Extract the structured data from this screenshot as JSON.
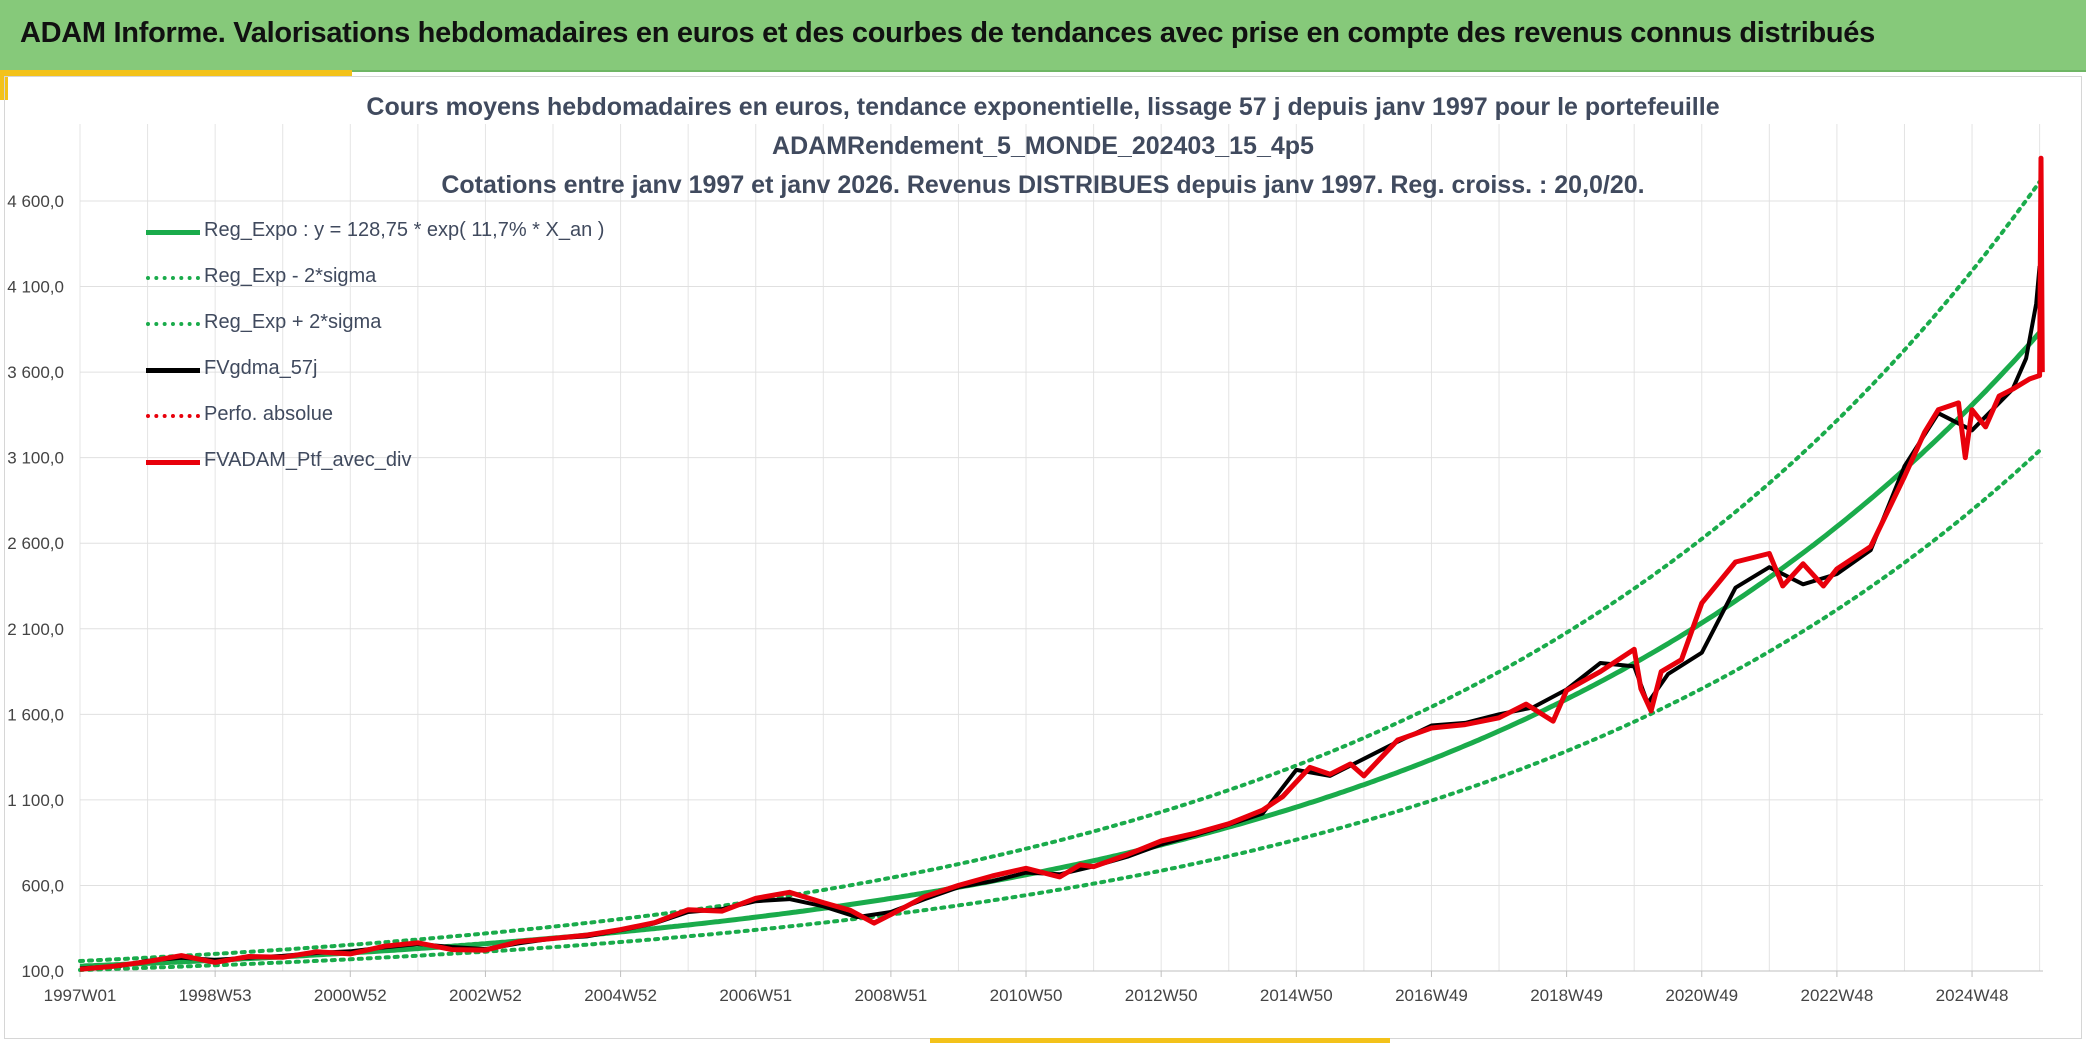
{
  "header": {
    "title": "ADAM Informe. Valorisations hebdomadaires en euros et des courbes de tendances avec prise en compte des revenus connus distribués"
  },
  "colors": {
    "header_bg": "#86c97a",
    "accent": "#f3c21a",
    "reg_green": "#1aab4b",
    "black": "#000000",
    "red": "#e8000b"
  },
  "chart_data": {
    "type": "line",
    "title": [
      "Cours moyens hebdomadaires en euros, tendance exponentielle, lissage 57 j depuis janv 1997 pour le portefeuille",
      "ADAMRendement_5_MONDE_202403_15_4p5",
      "Cotations entre janv 1997 et janv 2026. Revenus DISTRIBUES depuis janv 1997. Reg. croiss. : 20,0/20."
    ],
    "x_range": [
      1997.0,
      2026.05
    ],
    "ylim": [
      100,
      5050
    ],
    "y_ticks": [
      {
        "value": 100,
        "label": "100,0"
      },
      {
        "value": 600,
        "label": "600,0"
      },
      {
        "value": 1100,
        "label": "1 100,0"
      },
      {
        "value": 1600,
        "label": "1 600,0"
      },
      {
        "value": 2100,
        "label": "2 100,0"
      },
      {
        "value": 2600,
        "label": "2 600,0"
      },
      {
        "value": 3100,
        "label": "3 100,0"
      },
      {
        "value": 3600,
        "label": "3 600,0"
      },
      {
        "value": 4100,
        "label": "4 100,0"
      },
      {
        "value": 4600,
        "label": "4 600,0"
      }
    ],
    "x_ticks": [
      {
        "value": 1997.0,
        "label": "1997W01"
      },
      {
        "value": 1999.0,
        "label": "1998W53"
      },
      {
        "value": 2001.0,
        "label": "2000W52"
      },
      {
        "value": 2003.0,
        "label": "2002W52"
      },
      {
        "value": 2005.0,
        "label": "2004W52"
      },
      {
        "value": 2007.0,
        "label": "2006W51"
      },
      {
        "value": 2009.0,
        "label": "2008W51"
      },
      {
        "value": 2011.0,
        "label": "2010W50"
      },
      {
        "value": 2013.0,
        "label": "2012W50"
      },
      {
        "value": 2015.0,
        "label": "2014W50"
      },
      {
        "value": 2017.0,
        "label": "2016W49"
      },
      {
        "value": 2019.0,
        "label": "2018W49"
      },
      {
        "value": 2021.0,
        "label": "2020W49"
      },
      {
        "value": 2023.0,
        "label": "2022W48"
      },
      {
        "value": 2025.0,
        "label": "2024W48"
      }
    ],
    "grid": true,
    "legend_position": "top-left",
    "regression": {
      "a": 128.75,
      "rate_per_year": 0.117,
      "lower_factor": 0.82,
      "upper_factor": 1.23,
      "x_end": 2026.0
    },
    "series": [
      {
        "name": "Reg_Expo : y = 128,75 * exp( 11,7% *  X_an )",
        "style": "solid",
        "color": "#1aab4b",
        "width": 5
      },
      {
        "name": "Reg_Exp - 2*sigma",
        "style": "dotted",
        "color": "#1aab4b",
        "width": 4
      },
      {
        "name": "Reg_Exp + 2*sigma",
        "style": "dotted",
        "color": "#1aab4b",
        "width": 4
      },
      {
        "name": "FVgdma_57j",
        "style": "solid",
        "color": "#000000",
        "width": 4,
        "x": [
          1997.0,
          1997.6,
          1998.0,
          1998.5,
          1999.0,
          1999.5,
          2000.0,
          2000.5,
          2001.0,
          2001.5,
          2002.0,
          2002.5,
          2003.0,
          2003.5,
          2004.0,
          2004.5,
          2005.0,
          2005.5,
          2006.0,
          2006.5,
          2007.0,
          2007.5,
          2008.0,
          2008.5,
          2009.0,
          2009.5,
          2010.0,
          2010.5,
          2011.0,
          2011.5,
          2012.0,
          2012.5,
          2013.0,
          2013.5,
          2014.0,
          2014.5,
          2015.0,
          2015.5,
          2016.0,
          2016.5,
          2017.0,
          2017.5,
          2018.0,
          2018.5,
          2019.0,
          2019.5,
          2020.0,
          2020.2,
          2020.5,
          2021.0,
          2021.5,
          2022.0,
          2022.5,
          2023.0,
          2023.5,
          2024.0,
          2024.5,
          2025.0,
          2025.3,
          2025.6,
          2025.8,
          2025.95,
          2026.0
        ],
        "y": [
          115,
          130,
          160,
          178,
          165,
          178,
          188,
          205,
          215,
          238,
          258,
          240,
          228,
          262,
          290,
          302,
          338,
          378,
          445,
          462,
          508,
          520,
          478,
          415,
          445,
          520,
          590,
          625,
          675,
          665,
          712,
          768,
          840,
          895,
          955,
          1020,
          1275,
          1240,
          1340,
          1440,
          1535,
          1550,
          1600,
          1640,
          1745,
          1900,
          1880,
          1665,
          1835,
          1960,
          2340,
          2460,
          2360,
          2420,
          2560,
          3050,
          3360,
          3260,
          3380,
          3500,
          3680,
          4000,
          4220
        ]
      },
      {
        "name": "Perfo. absolue",
        "style": "dotted",
        "color": "#e8000b",
        "width": 4
      },
      {
        "name": "FVADAM_Ptf_avec_div",
        "style": "solid",
        "color": "#e8000b",
        "width": 5,
        "x": [
          1997.0,
          1997.5,
          1998.0,
          1998.5,
          1999.0,
          1999.5,
          2000.0,
          2000.5,
          2001.0,
          2001.5,
          2002.0,
          2002.5,
          2003.0,
          2003.5,
          2004.0,
          2004.5,
          2005.0,
          2005.5,
          2006.0,
          2006.5,
          2007.0,
          2007.5,
          2008.0,
          2008.4,
          2008.75,
          2009.0,
          2009.5,
          2010.0,
          2010.5,
          2011.0,
          2011.5,
          2011.8,
          2012.0,
          2012.5,
          2013.0,
          2013.5,
          2014.0,
          2014.5,
          2014.8,
          2015.2,
          2015.5,
          2015.8,
          2016.0,
          2016.5,
          2017.0,
          2017.5,
          2018.0,
          2018.4,
          2018.8,
          2019.0,
          2019.5,
          2020.0,
          2020.1,
          2020.25,
          2020.4,
          2020.7,
          2021.0,
          2021.5,
          2022.0,
          2022.2,
          2022.5,
          2022.8,
          2023.0,
          2023.5,
          2024.0,
          2024.3,
          2024.5,
          2024.8,
          2024.9,
          2025.0,
          2025.2,
          2025.4,
          2025.6,
          2025.85,
          2026.0,
          2026.02,
          2026.04
        ],
        "y": [
          110,
          128,
          155,
          190,
          150,
          185,
          180,
          212,
          200,
          245,
          265,
          225,
          222,
          272,
          290,
          310,
          342,
          382,
          458,
          450,
          525,
          560,
          500,
          455,
          380,
          430,
          535,
          600,
          655,
          700,
          650,
          720,
          710,
          780,
          860,
          905,
          960,
          1040,
          1120,
          1290,
          1250,
          1310,
          1240,
          1450,
          1520,
          1540,
          1580,
          1660,
          1560,
          1740,
          1850,
          1980,
          1750,
          1620,
          1850,
          1920,
          2250,
          2490,
          2540,
          2350,
          2480,
          2350,
          2450,
          2580,
          2990,
          3250,
          3380,
          3420,
          3100,
          3380,
          3280,
          3460,
          3500,
          3560,
          3580,
          4850,
          3600
        ]
      }
    ]
  }
}
